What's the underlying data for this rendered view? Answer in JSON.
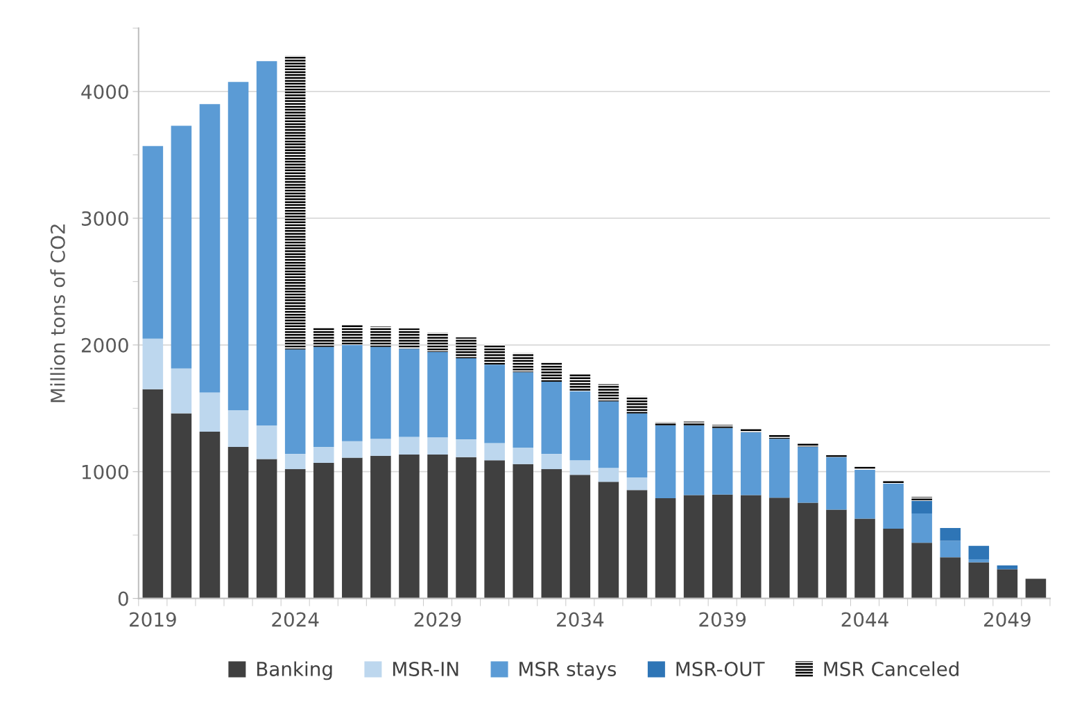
{
  "chart_data": {
    "type": "bar",
    "stacked": true,
    "ylabel": "Million tons of CO2",
    "categories": [
      "2019",
      null,
      null,
      null,
      null,
      "2024",
      null,
      null,
      null,
      null,
      "2029",
      null,
      null,
      null,
      null,
      "2034",
      null,
      null,
      null,
      null,
      "2039",
      null,
      null,
      null,
      null,
      "2044",
      null,
      null,
      null,
      null,
      "2049",
      null
    ],
    "series": [
      {
        "name": "Banking",
        "color": "#404040",
        "values": [
          1650,
          1460,
          1315,
          1195,
          1100,
          1020,
          1070,
          1110,
          1125,
          1135,
          1135,
          1115,
          1090,
          1060,
          1020,
          975,
          920,
          855,
          790,
          815,
          820,
          815,
          795,
          755,
          700,
          630,
          550,
          440,
          325,
          285,
          230,
          155
        ]
      },
      {
        "name": "MSR-IN",
        "color": "#bdd7ee",
        "values": [
          400,
          355,
          310,
          290,
          265,
          120,
          125,
          130,
          135,
          140,
          135,
          140,
          135,
          130,
          120,
          115,
          110,
          100,
          null,
          null,
          null,
          null,
          null,
          null,
          null,
          null,
          null,
          null,
          null,
          null,
          null,
          null
        ]
      },
      {
        "name": "MSR stays",
        "color": "#5b9bd5",
        "values": [
          1520,
          1915,
          2275,
          2590,
          2875,
          825,
          790,
          760,
          725,
          695,
          675,
          640,
          620,
          595,
          570,
          545,
          525,
          505,
          575,
          550,
          525,
          495,
          465,
          440,
          415,
          385,
          355,
          230,
          130,
          25,
          null,
          null
        ]
      },
      {
        "name": "MSR-OUT",
        "color": "#2e75b6",
        "values": [
          null,
          null,
          null,
          null,
          null,
          null,
          null,
          null,
          null,
          null,
          null,
          null,
          null,
          null,
          null,
          null,
          null,
          null,
          null,
          null,
          null,
          null,
          null,
          null,
          null,
          null,
          null,
          100,
          100,
          105,
          30,
          null
        ]
      },
      {
        "name": "MSR Canceled",
        "color": "#000000",
        "values": [
          null,
          null,
          null,
          null,
          null,
          2315,
          155,
          160,
          160,
          160,
          150,
          165,
          160,
          150,
          150,
          140,
          135,
          135,
          25,
          30,
          25,
          30,
          30,
          30,
          15,
          25,
          25,
          30,
          null,
          null,
          null,
          null
        ]
      }
    ],
    "ylim": [
      0,
      4500
    ],
    "yticks": [
      0,
      {
        "value": 500,
        "label": null
      },
      1000,
      {
        "value": 1500,
        "label": null
      },
      2000,
      {
        "value": 2500,
        "label": null
      },
      3000,
      {
        "value": 3500,
        "label": null
      },
      4000,
      {
        "value": 4500,
        "label": null
      }
    ],
    "grid": "y",
    "legend": "bottom"
  }
}
